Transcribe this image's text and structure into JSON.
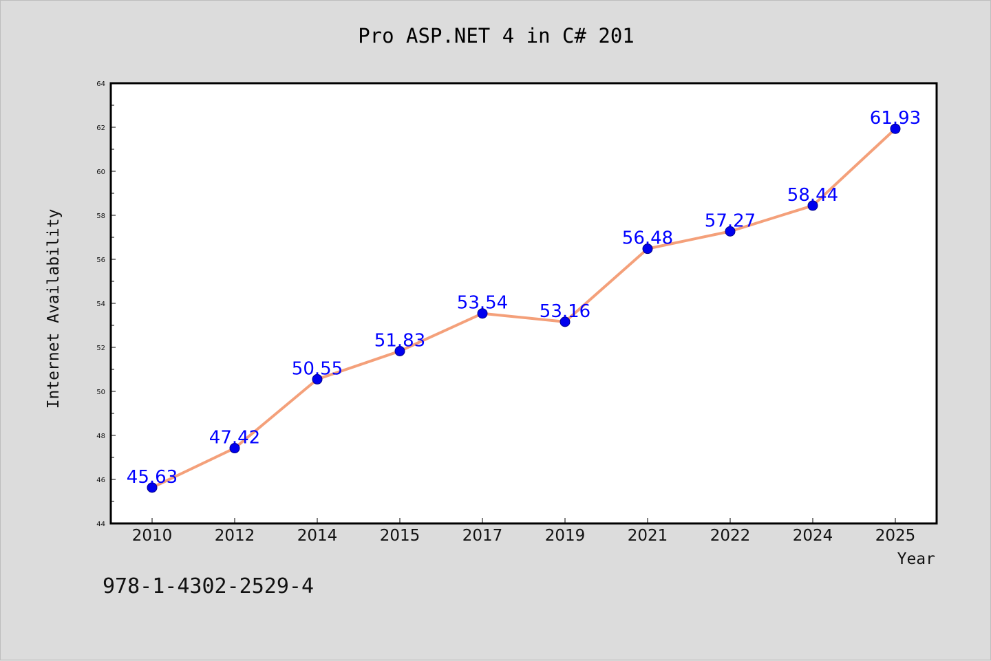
{
  "chart_data": {
    "type": "line",
    "title": "Pro ASP.NET 4 in C# 201",
    "xlabel": "Year",
    "ylabel": "Internet Availability",
    "categories": [
      "2010",
      "2012",
      "2014",
      "2015",
      "2017",
      "2019",
      "2021",
      "2022",
      "2024",
      "2025"
    ],
    "series": [
      {
        "values": [
          45.63,
          47.42,
          50.55,
          51.83,
          53.54,
          53.16,
          56.48,
          57.27,
          58.44,
          61.93
        ],
        "labels": [
          "45.63",
          "47.42",
          "50.55",
          "51.83",
          "53.54",
          "53.16",
          "56.48",
          "57.27",
          "58.44",
          "61.93"
        ],
        "line_color": "#f4a07a",
        "marker_color": "#0000ee",
        "label_color": "#0000ff"
      }
    ],
    "ylim": [
      44,
      64
    ],
    "yticks": [
      "44",
      "46",
      "48",
      "50",
      "52",
      "54",
      "56",
      "58",
      "60",
      "62",
      "64"
    ],
    "grid": false,
    "legend": "none"
  },
  "footer": {
    "isbn": "978-1-4302-2529-4"
  }
}
